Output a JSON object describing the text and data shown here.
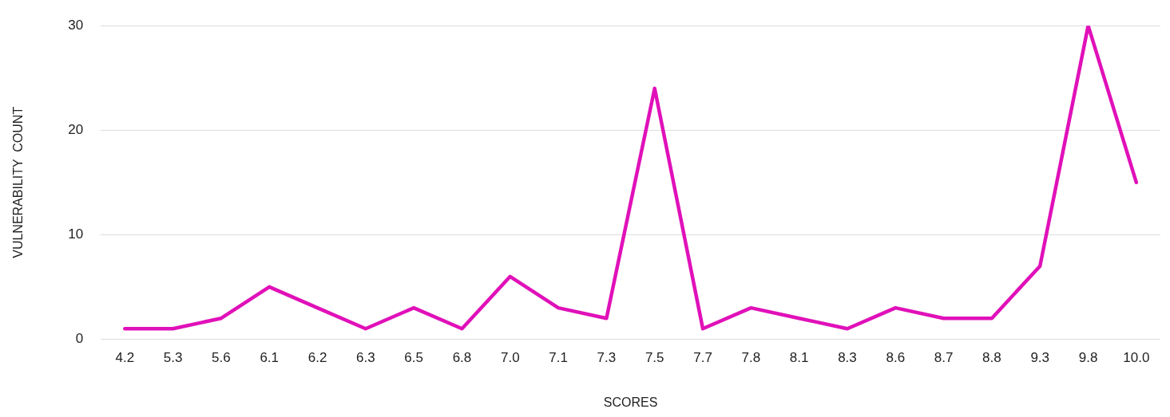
{
  "chart_data": {
    "type": "line",
    "xlabel": "SCORES",
    "ylabel": "VULNERABILITY  COUNT",
    "categories": [
      "4.2",
      "5.3",
      "5.6",
      "6.1",
      "6.2",
      "6.3",
      "6.5",
      "6.8",
      "7.0",
      "7.1",
      "7.3",
      "7.5",
      "7.7",
      "7.8",
      "8.1",
      "8.3",
      "8.6",
      "8.7",
      "8.8",
      "9.3",
      "9.8",
      "10.0"
    ],
    "series": [
      {
        "color": "#e011b9",
        "values": [
          1,
          1,
          2,
          5,
          3,
          1,
          3,
          1,
          6,
          3,
          2,
          24,
          1,
          3,
          2,
          1,
          3,
          2,
          2,
          7,
          30,
          15
        ]
      }
    ],
    "ylim": [
      0,
      30
    ],
    "yticks": [
      0,
      10,
      20,
      30
    ],
    "grid": "y",
    "legend": false,
    "marker": "none",
    "line_style": "solid"
  }
}
